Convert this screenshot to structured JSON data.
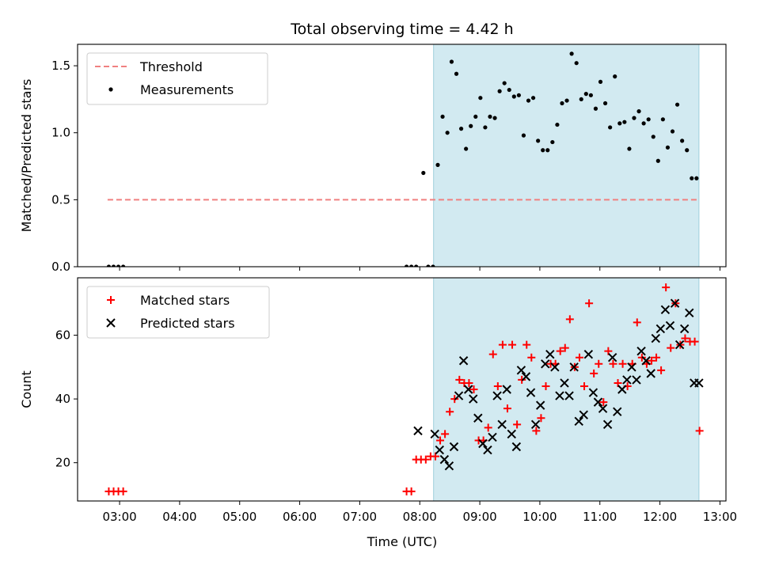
{
  "chart_data": {
    "title": "Total observing time = 4.42 h",
    "xlabel": "Time (UTC)",
    "x_unit": "hours UTC",
    "xlim": [
      2.3,
      13.1
    ],
    "xticks": [
      3,
      4,
      5,
      6,
      7,
      8,
      9,
      10,
      11,
      12,
      13
    ],
    "xtick_labels": [
      "03:00",
      "04:00",
      "05:00",
      "06:00",
      "07:00",
      "08:00",
      "09:00",
      "10:00",
      "11:00",
      "12:00",
      "13:00"
    ],
    "shaded_span": {
      "x0": 8.23,
      "x1": 12.65,
      "color": "#add8e6"
    },
    "subplots": [
      {
        "type": "scatter",
        "ylabel": "Matched/Predicted stars",
        "ylim": [
          0,
          1.66
        ],
        "yticks": [
          0.0,
          0.5,
          1.0,
          1.5
        ],
        "ytick_labels": [
          "0.0",
          "0.5",
          "1.0",
          "1.5"
        ],
        "legend": "top-left",
        "threshold": {
          "name": "Threshold",
          "y": 0.5,
          "x0": 2.8,
          "x1": 12.65,
          "color": "#f08080"
        },
        "series": [
          {
            "name": "Measurements",
            "color": "#000000",
            "marker": "dot",
            "x": [
              2.82,
              2.9,
              2.98,
              3.06,
              7.78,
              7.86,
              7.94,
              8.06,
              8.14,
              8.22,
              8.3,
              8.38,
              8.46,
              8.53,
              8.61,
              8.69,
              8.77,
              8.85,
              8.93,
              9.01,
              9.09,
              9.17,
              9.25,
              9.33,
              9.41,
              9.49,
              9.57,
              9.65,
              9.73,
              9.81,
              9.89,
              9.97,
              10.05,
              10.13,
              10.21,
              10.29,
              10.37,
              10.45,
              10.53,
              10.61,
              10.69,
              10.77,
              10.85,
              10.93,
              11.01,
              11.09,
              11.17,
              11.25,
              11.33,
              11.41,
              11.49,
              11.57,
              11.65,
              11.73,
              11.81,
              11.89,
              11.97,
              12.05,
              12.13,
              12.21,
              12.29,
              12.37,
              12.45,
              12.53,
              12.61
            ],
            "y": [
              0.0,
              0.0,
              0.0,
              0.0,
              0.0,
              0.0,
              0.0,
              0.7,
              0.0,
              0.0,
              0.76,
              1.12,
              1.0,
              1.53,
              1.44,
              1.03,
              0.88,
              1.05,
              1.12,
              1.26,
              1.04,
              1.12,
              1.11,
              1.31,
              1.37,
              1.32,
              1.27,
              1.28,
              0.98,
              1.24,
              1.26,
              0.94,
              0.87,
              0.87,
              0.93,
              1.06,
              1.22,
              1.24,
              1.59,
              1.52,
              1.25,
              1.29,
              1.28,
              1.18,
              1.38,
              1.22,
              1.04,
              1.42,
              1.07,
              1.08,
              0.88,
              1.11,
              1.16,
              1.07,
              1.1,
              0.97,
              0.79,
              1.1,
              0.89,
              1.01,
              1.21,
              0.94,
              0.87,
              0.66,
              0.66
            ]
          }
        ]
      },
      {
        "type": "scatter",
        "ylabel": "Count",
        "ylim": [
          8,
          78
        ],
        "yticks": [
          20,
          40,
          60
        ],
        "ytick_labels": [
          "20",
          "40",
          "60"
        ],
        "legend": "top-left",
        "series": [
          {
            "name": "Matched stars",
            "color": "#ff0000",
            "marker": "plus",
            "x": [
              2.82,
              2.9,
              2.98,
              3.06,
              7.78,
              7.86,
              7.94,
              8.02,
              8.1,
              8.18,
              8.26,
              8.34,
              8.42,
              8.5,
              8.58,
              8.66,
              8.74,
              8.82,
              8.9,
              8.98,
              9.06,
              9.14,
              9.22,
              9.3,
              9.38,
              9.46,
              9.54,
              9.62,
              9.7,
              9.78,
              9.86,
              9.94,
              10.02,
              10.1,
              10.18,
              10.26,
              10.34,
              10.42,
              10.5,
              10.58,
              10.66,
              10.74,
              10.82,
              10.9,
              10.98,
              11.06,
              11.14,
              11.22,
              11.3,
              11.38,
              11.46,
              11.54,
              11.62,
              11.7,
              11.78,
              11.86,
              11.94,
              12.02,
              12.1,
              12.18,
              12.26,
              12.34,
              12.42,
              12.5,
              12.58,
              12.66
            ],
            "y": [
              11,
              11,
              11,
              11,
              11,
              11,
              21,
              21,
              21,
              22,
              22,
              27,
              29,
              36,
              40,
              46,
              45,
              45,
              43,
              27,
              27,
              31,
              54,
              44,
              57,
              37,
              57,
              32,
              46,
              57,
              53,
              30,
              34,
              44,
              51,
              51,
              55,
              56,
              65,
              50,
              53,
              44,
              70,
              48,
              51,
              39,
              55,
              51,
              45,
              51,
              44,
              51,
              64,
              53,
              51,
              52,
              53,
              49,
              75,
              56,
              70,
              57,
              59,
              58,
              58,
              30
            ]
          },
          {
            "name": "Predicted stars",
            "color": "#000000",
            "marker": "x",
            "x": [
              7.97,
              8.25,
              8.33,
              8.41,
              8.49,
              8.57,
              8.65,
              8.73,
              8.81,
              8.89,
              8.97,
              9.05,
              9.13,
              9.21,
              9.29,
              9.37,
              9.45,
              9.53,
              9.61,
              9.69,
              9.77,
              9.85,
              9.93,
              10.01,
              10.09,
              10.17,
              10.25,
              10.33,
              10.41,
              10.49,
              10.57,
              10.65,
              10.73,
              10.81,
              10.89,
              10.97,
              11.05,
              11.13,
              11.21,
              11.29,
              11.37,
              11.45,
              11.53,
              11.61,
              11.69,
              11.77,
              11.85,
              11.93,
              12.01,
              12.09,
              12.17,
              12.25,
              12.33,
              12.41,
              12.49,
              12.57,
              12.65
            ],
            "y": [
              30,
              29,
              24,
              21,
              19,
              25,
              41,
              52,
              43,
              40,
              34,
              26,
              24,
              28,
              41,
              32,
              43,
              29,
              25,
              49,
              47,
              42,
              32,
              38,
              51,
              54,
              50,
              41,
              45,
              41,
              50,
              33,
              35,
              54,
              42,
              39,
              37,
              32,
              53,
              36,
              43,
              46,
              50,
              46,
              55,
              52,
              48,
              59,
              62,
              68,
              63,
              70,
              57,
              62,
              67,
              45,
              45
            ]
          }
        ]
      }
    ]
  }
}
